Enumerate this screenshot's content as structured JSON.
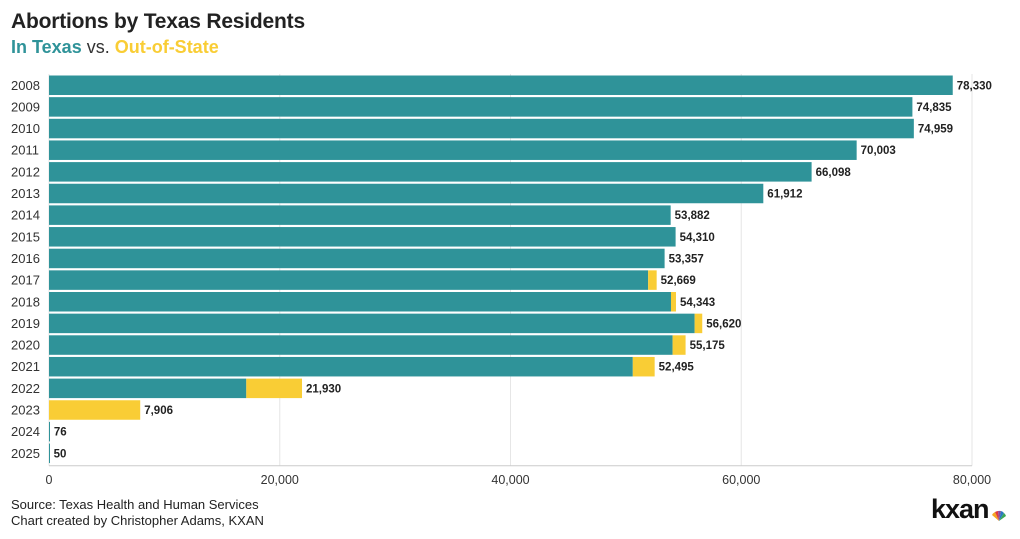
{
  "title": "Abortions by Texas Residents",
  "subtitle": {
    "in_texas": "In Texas",
    "vs": " vs. ",
    "out_of_state": "Out-of-State"
  },
  "colors": {
    "in_texas": "#2f9399",
    "out_of_state": "#f9cd35",
    "grid": "#e6e6e6"
  },
  "footer": {
    "source": "Source: Texas Health and Human Services",
    "credit": "Chart created by Christopher Adams, KXAN"
  },
  "logo": {
    "text": "kxan",
    "icon": "peacock-icon"
  },
  "chart_data": {
    "type": "bar",
    "orientation": "horizontal",
    "stacked": true,
    "title": "Abortions by Texas Residents",
    "categories": [
      "2008",
      "2009",
      "2010",
      "2011",
      "2012",
      "2013",
      "2014",
      "2015",
      "2016",
      "2017",
      "2018",
      "2019",
      "2020",
      "2021",
      "2022",
      "2023",
      "2024",
      "2025"
    ],
    "series": [
      {
        "name": "In Texas",
        "values": [
          78330,
          74835,
          74959,
          70003,
          66098,
          61912,
          53882,
          54310,
          53357,
          51930,
          53910,
          55960,
          54050,
          50600,
          17100,
          0,
          76,
          50
        ]
      },
      {
        "name": "Out-of-State",
        "values": [
          0,
          0,
          0,
          0,
          0,
          0,
          0,
          0,
          0,
          739,
          433,
          660,
          1125,
          1895,
          4830,
          7906,
          0,
          0
        ]
      }
    ],
    "totals": [
      78330,
      74835,
      74959,
      70003,
      66098,
      61912,
      53882,
      54310,
      53357,
      52669,
      54343,
      56620,
      55175,
      52495,
      21930,
      7906,
      76,
      50
    ],
    "total_labels": [
      "78,330",
      "74,835",
      "74,959",
      "70,003",
      "66,098",
      "61,912",
      "53,882",
      "54,310",
      "53,357",
      "52,669",
      "54,343",
      "56,620",
      "55,175",
      "52,495",
      "21,930",
      "7,906",
      "76",
      "50"
    ],
    "xlim": [
      0,
      80000
    ],
    "xticks": [
      0,
      20000,
      40000,
      60000,
      80000
    ],
    "xtick_labels": [
      "0",
      "20,000",
      "40,000",
      "60,000",
      "80,000"
    ],
    "xlabel": "",
    "ylabel": "",
    "grid": true
  }
}
